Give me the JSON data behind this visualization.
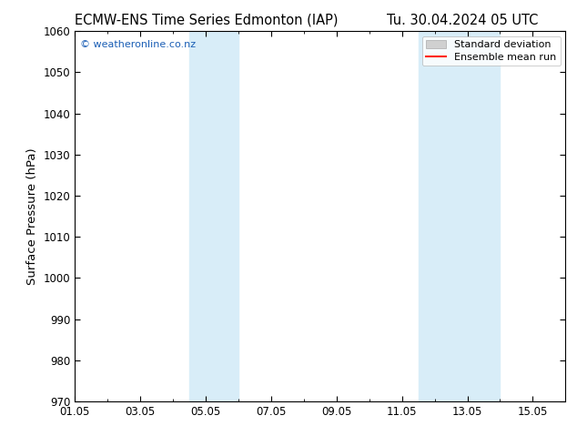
{
  "title_left": "ECMW-ENS Time Series Edmonton (IAP)",
  "title_right": "Tu. 30.04.2024 05 UTC",
  "ylabel": "Surface Pressure (hPa)",
  "ylim": [
    970,
    1060
  ],
  "yticks": [
    970,
    980,
    990,
    1000,
    1010,
    1020,
    1030,
    1040,
    1050,
    1060
  ],
  "xlim": [
    0,
    15
  ],
  "xtick_labels": [
    "01.05",
    "03.05",
    "05.05",
    "07.05",
    "09.05",
    "11.05",
    "13.05",
    "15.05"
  ],
  "xtick_positions_days": [
    0,
    2,
    4,
    6,
    8,
    10,
    12,
    14
  ],
  "shaded_bands": [
    {
      "x_start_day": 3.5,
      "x_end_day": 5.0
    },
    {
      "x_start_day": 10.5,
      "x_end_day": 13.0
    }
  ],
  "shaded_color": "#d8edf8",
  "watermark": "© weatheronline.co.nz",
  "watermark_color": "#1a5eb5",
  "legend_sd_color": "#d0d0d0",
  "legend_mean_color": "#ff2200",
  "bg_color": "#ffffff",
  "axis_color": "#000000",
  "title_fontsize": 10.5,
  "tick_fontsize": 8.5,
  "ylabel_fontsize": 9.5,
  "watermark_fontsize": 8,
  "legend_fontsize": 8
}
